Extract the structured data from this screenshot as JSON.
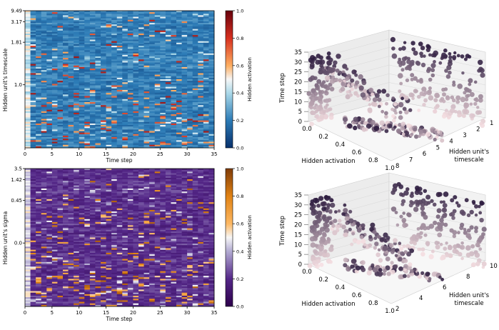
{
  "chart_data": [
    {
      "type": "heatmap",
      "title": "",
      "xlabel": "Time step",
      "ylabel": "Hidden unit's timescale",
      "xlim": [
        0,
        35
      ],
      "xticks": [
        "0",
        "5",
        "10",
        "15",
        "20",
        "25",
        "30",
        "35"
      ],
      "yticks": [
        "9.49",
        "3.17",
        "1.81",
        "1.0"
      ],
      "colorbar": {
        "label": "Hidden activation",
        "range": [
          0.0,
          1.0
        ],
        "ticks": [
          "0.0",
          "0.2",
          "0.4",
          "0.6",
          "0.8",
          "1.0"
        ],
        "colormap": "RdBu_r"
      },
      "colors": {
        "low": "#08306b",
        "mid": "#f7f7f7",
        "high": "#67000d"
      }
    },
    {
      "type": "scatter",
      "projection": "3d",
      "xlabel": "Hidden activation",
      "ylabel": "Hidden unit's timescale",
      "zlabel": "Time step",
      "xticks": [
        "0.0",
        "0.2",
        "0.4",
        "0.6",
        "0.8",
        "1.0"
      ],
      "yticks": [
        "1",
        "2",
        "3",
        "4",
        "5",
        "6",
        "7",
        "8"
      ],
      "zticks": [
        "0",
        "5",
        "10",
        "15",
        "20",
        "25",
        "30",
        "35"
      ],
      "colormap": "time step (light pink → dark purple)"
    },
    {
      "type": "heatmap",
      "title": "",
      "xlabel": "Time step",
      "ylabel": "Hidden unit's sigma",
      "xlim": [
        0,
        35
      ],
      "xticks": [
        "0",
        "5",
        "10",
        "15",
        "20",
        "25",
        "30",
        "35"
      ],
      "yticks": [
        "3.5",
        "1.42",
        "0.45",
        "0.0"
      ],
      "colorbar": {
        "label": "Hidden activation",
        "range": [
          0.0,
          1.0
        ],
        "ticks": [
          "0.0",
          "0.2",
          "0.4",
          "0.6",
          "0.8",
          "1.0"
        ],
        "colormap": "PuOr_r"
      },
      "colors": {
        "low": "#2d004b",
        "mid": "#f7f7f7",
        "high": "#7f3b08"
      }
    },
    {
      "type": "scatter",
      "projection": "3d",
      "xlabel": "Hidden activation",
      "ylabel": "Hidden unit's timescale",
      "zlabel": "Time step",
      "xticks": [
        "0.0",
        "0.2",
        "0.4",
        "0.6",
        "0.8",
        "1.0"
      ],
      "yticks": [
        "10",
        "8",
        "6",
        "4",
        "2"
      ],
      "zticks": [
        "0",
        "5",
        "10",
        "15",
        "20",
        "25",
        "30",
        "35"
      ],
      "colormap": "time step (light pink → dark purple)"
    }
  ]
}
